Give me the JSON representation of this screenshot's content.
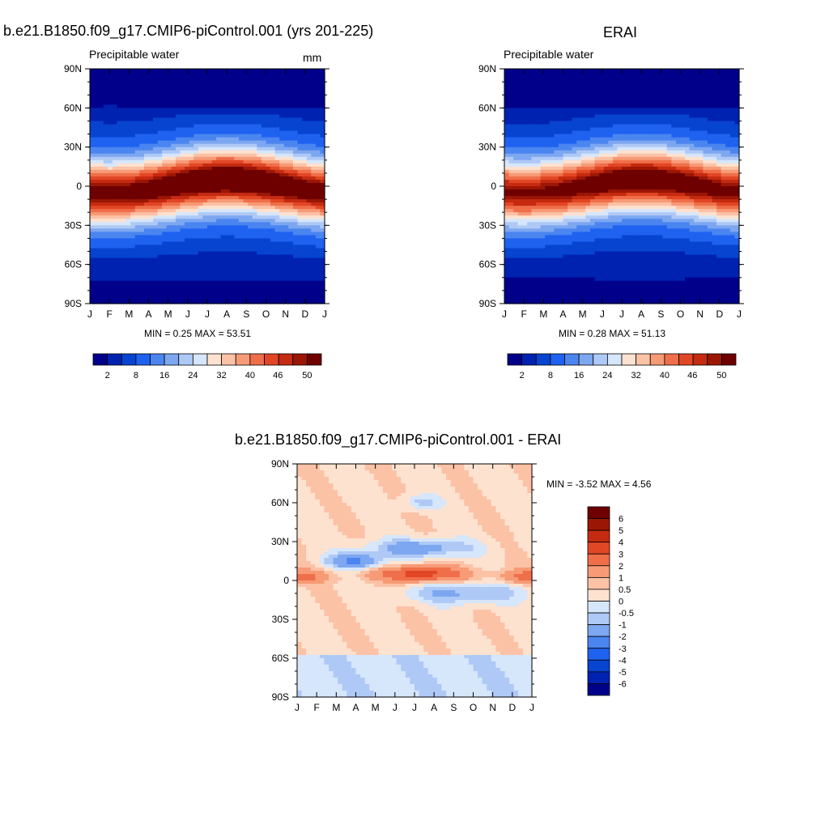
{
  "chart_data": [
    {
      "type": "heatmap",
      "id": "model",
      "title": "b.e21.B1850.f09_g17.CMIP6-piControl.001 (yrs 201-225)",
      "variable": "Precipitable water",
      "units": "mm",
      "stats": "MIN =   0.25 MAX =   53.51",
      "min": 0.25,
      "max": 53.51,
      "xlabels": [
        "J",
        "F",
        "M",
        "A",
        "M",
        "J",
        "J",
        "A",
        "S",
        "O",
        "N",
        "D",
        "J"
      ],
      "ylabels": [
        "90N",
        "60N",
        "30N",
        "0",
        "30S",
        "60S",
        "90S"
      ],
      "yrange": [
        -90,
        90
      ],
      "colorbar": {
        "labels": [
          "2",
          "8",
          "16",
          "24",
          "32",
          "40",
          "46",
          "50"
        ],
        "levels": [
          1,
          2,
          4,
          8,
          12,
          16,
          20,
          24,
          28,
          32,
          36,
          40,
          43,
          46,
          48,
          50
        ],
        "colors": [
          "#00008a",
          "#0022b0",
          "#0744d0",
          "#1f62f0",
          "#4b85f0",
          "#7da7f0",
          "#afc9f6",
          "#d6e6fb",
          "#fde2d0",
          "#fcc2a6",
          "#f79a76",
          "#ef6f4a",
          "#e24725",
          "#c52b10",
          "#9b1605",
          "#6e0000"
        ]
      }
    },
    {
      "type": "heatmap",
      "id": "obs",
      "title": "ERAI",
      "variable": "Precipitable water",
      "stats": "MIN =   0.28 MAX =   51.13",
      "min": 0.28,
      "max": 51.13,
      "xlabels": [
        "J",
        "F",
        "M",
        "A",
        "M",
        "J",
        "J",
        "A",
        "S",
        "O",
        "N",
        "D",
        "J"
      ],
      "ylabels": [
        "90N",
        "60N",
        "30N",
        "0",
        "30S",
        "60S",
        "90S"
      ],
      "yrange": [
        -90,
        90
      ],
      "colorbar": {
        "labels": [
          "2",
          "8",
          "16",
          "24",
          "32",
          "40",
          "46",
          "50"
        ]
      }
    },
    {
      "type": "heatmap",
      "id": "diff",
      "title": "b.e21.B1850.f09_g17.CMIP6-piControl.001 - ERAI",
      "stats": "MIN =  -3.52 MAX =    4.56",
      "min": -3.52,
      "max": 4.56,
      "xlabels": [
        "J",
        "F",
        "M",
        "A",
        "M",
        "J",
        "J",
        "A",
        "S",
        "O",
        "N",
        "D",
        "J"
      ],
      "ylabels": [
        "90N",
        "60N",
        "30N",
        "0",
        "30S",
        "60S",
        "90S"
      ],
      "yrange": [
        -90,
        90
      ],
      "colorbar": {
        "labels": [
          "6",
          "5",
          "4",
          "3",
          "2",
          "1",
          "0.5",
          "0",
          "-0.5",
          "-1",
          "-2",
          "-3",
          "-4",
          "-5",
          "-6"
        ],
        "levels": [
          -6,
          -5,
          -4,
          -3,
          -2,
          -1,
          -0.5,
          0,
          0.5,
          1,
          2,
          3,
          4,
          5,
          6
        ],
        "colors": [
          "#00008a",
          "#0022b0",
          "#0744d0",
          "#1f62f0",
          "#4b85f0",
          "#7da7f0",
          "#afc9f6",
          "#d6e6fb",
          "#fde2d0",
          "#fcc2a6",
          "#f79a76",
          "#ef6f4a",
          "#e24725",
          "#c52b10",
          "#9b1605",
          "#6e0000"
        ]
      }
    }
  ]
}
